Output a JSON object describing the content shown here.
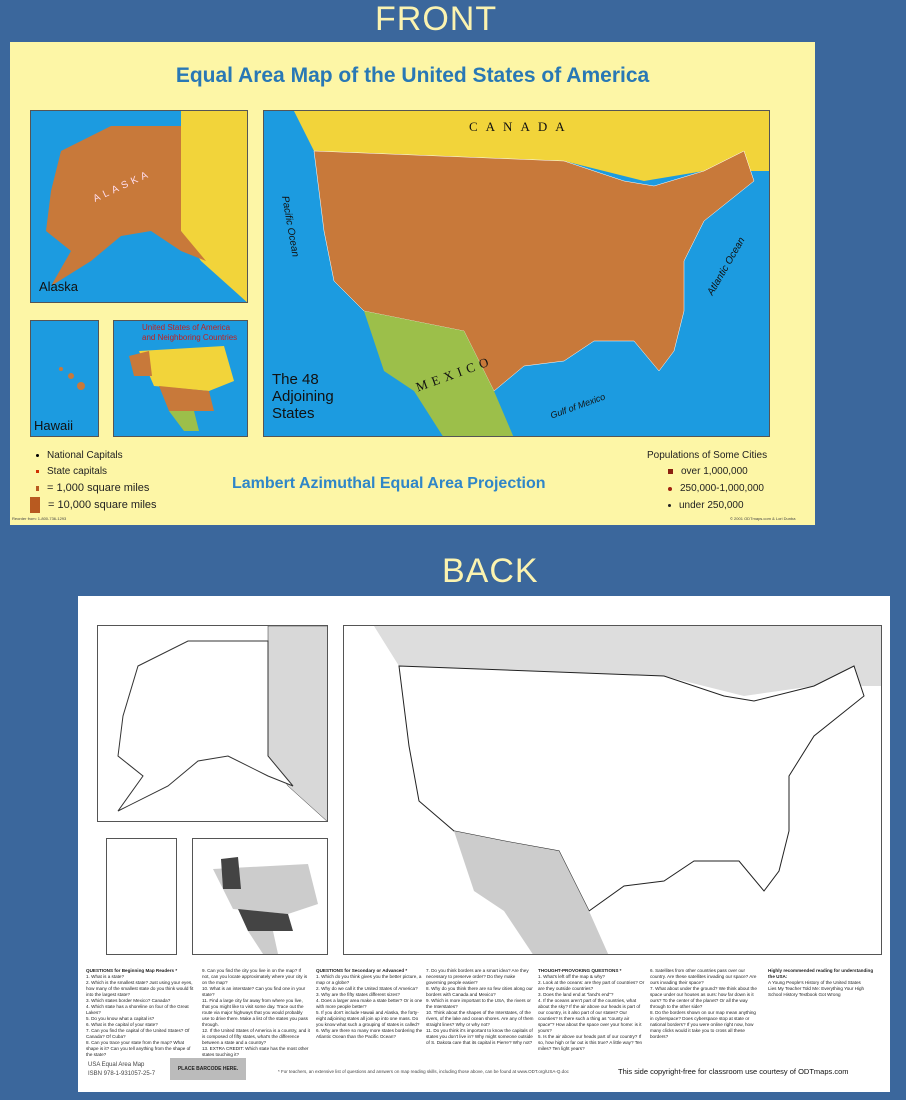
{
  "labels": {
    "front": "FRONT",
    "back": "BACK"
  },
  "front": {
    "title": "Equal Area Map of the United States of America",
    "alaska": "Alaska",
    "hawaii": "Hawaii",
    "neighbors": "United States of America and Neighboring Countries",
    "adjoining": [
      "The 48",
      "Adjoining",
      "States"
    ],
    "regions": {
      "canada": "CANADA",
      "mexico": "MEXICO",
      "pacific": "Pacific Ocean",
      "atlantic": "Atlantic Ocean",
      "gulf": "Gulf of Mexico",
      "alaska_big": "ALASKA"
    },
    "legend_left": [
      {
        "label": "National Capitals",
        "icon": "black-dot"
      },
      {
        "label": "State capitals",
        "icon": "red-dot"
      },
      {
        "label": "= 1,000 square miles",
        "icon": "small-brown-square"
      },
      {
        "label": "= 10,000 square miles",
        "icon": "large-brown-square"
      }
    ],
    "projection": "Lambert Azimuthal Equal Area Projection",
    "populations_title": "Populations of Some Cities",
    "populations": [
      {
        "label": "over 1,000,000",
        "icon": "dark-red-square"
      },
      {
        "label": "250,000-1,000,000",
        "icon": "red-dot"
      },
      {
        "label": "under 250,000",
        "icon": "small-dot"
      }
    ],
    "reorder": "Reorder from: 1-800-736-1293",
    "copyright": "© 2001 ODTmaps.com & Lori Dunba",
    "colors": {
      "ocean": "#1c9be0",
      "land_us": "#c8793a",
      "canada": "#f2d43a",
      "mexico": "#9cbf4a",
      "poster": "#fdf6a6",
      "title": "#2978b5"
    }
  },
  "back": {
    "columns": [
      {
        "heading": "QUESTIONS for Beginning Map Readers *",
        "items": [
          "1. What is a state?",
          "2. Which is the smallest state? Just using your eyes, how many of the smallest state do you think would fit into the largest state?",
          "3. Which states border Mexico? Canada?",
          "4. Which state has a shoreline on four of the Great Lakes?",
          "5. Do you know what a capital is?",
          "6. What is the capital of your state?",
          "7. Can you find the capital of the United States? Of Canada? Of Cuba?",
          "8. Can you trace your state from the map? What shape is it? Can you tell anything from the shape of the state?"
        ]
      },
      {
        "heading": "",
        "items": [
          "9. Can you find the city you live in on the map? If not, can you locate approximately where your city is on the map?",
          "10. What is an interstate? Can you find one in your state?",
          "11. Find a large city far away from where you live, that you might like to visit some day. Trace out the route via major highways that you would probably use to drive there. Make a list of the states you pass through.",
          "12. If the United States of America is a country, and it is composed of fifty states, what's the difference between a state and a country?",
          "13. EXTRA CREDIT: Which state has the most other states touching it?"
        ]
      },
      {
        "heading": "QUESTIONS for Secondary or Advanced *",
        "items": [
          "1. Which do you think gives you the better picture, a map or a globe?",
          "2. Why do we call it the United States of America?",
          "3. Why are the fifty states different sizes?",
          "4. Does a larger area make a state better? Or is one with more people better?",
          "5. If you don't include Hawaii and Alaska, the forty-eight adjoining states all join up into one mass. Do you know what such a grouping of states is called?",
          "6. Why are there so many more states bordering the Atlantic Ocean than the Pacific Ocean?"
        ]
      },
      {
        "heading": "",
        "items": [
          "7. Do you think borders are a smart idea? Are they necessary to preserve order? Do they make governing people easier?",
          "8. Why do you think there are so few cities along our borders with Canada and Mexico?",
          "9. Which is more important to the USA, the rivers or the Interstates?",
          "10. Think about the shapes of the Interstates, of the rivers, of the lake and ocean shores. Are any of them straight lines? Why or why not?",
          "11. Do you think it's important to know the capitals of states you don't live in? Why might someone outside of S. Dakota care that its capital is Pierre? Why not?"
        ]
      },
      {
        "heading": "THOUGHT-PROVOKING QUESTIONS *",
        "items": [
          "1. What's left off the map & why?",
          "2. Look at the oceans: are they part of countries? Or are they outside countries?",
          "3. Does the land end at \"land's end\"?",
          "4. If the oceans aren't part of the countries, what about the sky? If the air above our heads is part of our country, is it also part of our states? Our counties? Is there such a thing as \"county air space\"? How about the space over your home: is it yours?",
          "5. Is the air above our heads part of our country? If so, how high or far out is this true? A little way? Ten miles? Ten light years?"
        ]
      },
      {
        "heading": "",
        "items": [
          "6. Satellites from other countries pass over our country. Are these satellites invading our space? Are ours invading their space?",
          "7. What about under the ground? We think about the space under our houses as ours: how far down is it ours? To the center of the planet? Or all the way through to the other side?",
          "8. Do the borders shown on our map mean anything in cyberspace? Does cyberspace stop at state or national borders? If you were online right now, how many clicks would it take you to cross all these borders?"
        ]
      },
      {
        "heading": "Highly recommended reading for understanding the USA:",
        "items": [
          "A Young People's History of the United States",
          "Lies My Teacher Told Me: Everything Your High School History Textbook Got Wrong"
        ]
      }
    ],
    "product_name": "USA Equal Area Map",
    "isbn": "ISBN 978-1-931057-25-7",
    "barcode": "PLACE BARCODE HERE.",
    "footnote": "* For teachers, an extensive list of questions and answers on map reading skills, including those above, can be found at www.ODT.org/USA-Q.doc",
    "copyright_free": "This side copyright-free for classroom use courtesy of ODTmaps.com"
  }
}
